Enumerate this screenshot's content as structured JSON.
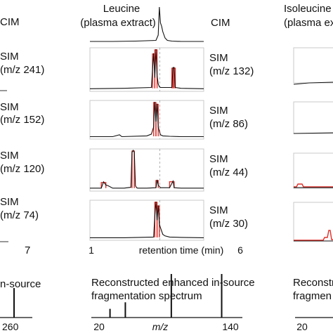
{
  "left_column": {
    "panel_labels": [
      "CIM",
      "SIM",
      "(m/z 241)",
      "SIM",
      "(m/z 152)",
      "SIM",
      "(m/z 120)",
      "SIM",
      "(m/z 74)"
    ],
    "axis_end_label": "7",
    "spectrum_title": "n-source",
    "spectrum_tick": "260"
  },
  "center_column": {
    "title_line1": "Leucine",
    "title_line2": "(plasma extract)",
    "panels": [
      {
        "mode": "CIM",
        "mz": ""
      },
      {
        "mode": "SIM",
        "mz": "(m/z 132)"
      },
      {
        "mode": "SIM",
        "mz": "(m/z 86)"
      },
      {
        "mode": "SIM",
        "mz": "(m/z 44)"
      },
      {
        "mode": "SIM",
        "mz": "(m/z 30)"
      }
    ],
    "x_axis": {
      "min_label": "1",
      "max_label": "6",
      "label": "retention time (min)"
    },
    "spectrum": {
      "title_line1": "Reconstructed enhanced in-source",
      "title_line2": "fragmentation spectrum",
      "x_min_label": "20",
      "x_label": "m/z",
      "x_max_label": "140"
    }
  },
  "right_column": {
    "title_line1": "Isoleucine",
    "title_line2": "(plasma ex",
    "spectrum_title_line1": "Reconstru",
    "spectrum_title_line2": "fragmen",
    "spectrum_tick": "20"
  },
  "colors": {
    "trace": "#111111",
    "highlight": "#e0302a",
    "frame": "#c8c8c8",
    "dashed": "#b0b0b0"
  },
  "chart_data": [
    {
      "type": "line",
      "title": "Leucine (plasma extract)",
      "xlabel": "retention time (min)",
      "xlim": [
        1,
        6
      ],
      "series": [
        {
          "name": "CIM",
          "x": [
            1.0,
            2.0,
            3.0,
            3.9,
            4.0,
            4.05,
            4.1,
            4.15,
            4.2,
            4.3,
            4.4,
            4.6,
            5.0,
            6.0
          ],
          "y": [
            0.02,
            0.02,
            0.03,
            0.05,
            0.2,
            1.0,
            0.55,
            0.45,
            0.3,
            0.12,
            0.05,
            0.03,
            0.02,
            0.02
          ]
        },
        {
          "name": "SIM (m/z 132)",
          "x": [
            1.0,
            2.5,
            3.7,
            3.75,
            3.8,
            3.85,
            3.9,
            3.95,
            4.0,
            4.05,
            4.1,
            4.2,
            4.3,
            4.6,
            4.65,
            4.7,
            4.75,
            5.0,
            6.0
          ],
          "y": [
            0.03,
            0.04,
            0.06,
            0.5,
            0.9,
            0.3,
            1.0,
            0.35,
            0.15,
            0.08,
            0.06,
            0.06,
            0.06,
            0.06,
            0.55,
            0.55,
            0.06,
            0.04,
            0.03
          ]
        },
        {
          "name": "SIM (m/z 86)",
          "x": [
            1.0,
            2.0,
            2.3,
            2.4,
            3.5,
            3.7,
            3.8,
            3.85,
            3.9,
            3.95,
            4.0,
            4.1,
            4.2,
            4.5,
            5.0,
            6.0
          ],
          "y": [
            0.03,
            0.03,
            0.08,
            0.03,
            0.05,
            0.1,
            0.3,
            1.0,
            0.45,
            0.95,
            0.3,
            0.08,
            0.05,
            0.04,
            0.03,
            0.03
          ]
        },
        {
          "name": "SIM (m/z 44)",
          "x": [
            1.0,
            1.5,
            1.6,
            1.7,
            1.8,
            2.0,
            2.5,
            2.8,
            2.85,
            2.9,
            2.95,
            3.0,
            3.05,
            3.1,
            3.5,
            3.9,
            3.95,
            4.0,
            4.1,
            4.5,
            4.65,
            4.7,
            5.0,
            6.0
          ],
          "y": [
            0.04,
            0.04,
            0.2,
            0.12,
            0.1,
            0.04,
            0.04,
            0.06,
            0.95,
            1.0,
            0.95,
            0.1,
            0.05,
            0.04,
            0.04,
            0.05,
            0.25,
            0.12,
            0.05,
            0.05,
            0.22,
            0.05,
            0.04,
            0.04
          ]
        },
        {
          "name": "SIM (m/z 30)",
          "x": [
            1.0,
            2.5,
            3.8,
            3.85,
            3.9,
            3.95,
            4.0,
            4.05,
            4.1,
            4.2,
            4.3,
            4.5,
            5.0,
            6.0
          ],
          "y": [
            0.03,
            0.03,
            0.05,
            0.6,
            1.0,
            0.5,
            0.9,
            0.4,
            0.3,
            0.12,
            0.08,
            0.05,
            0.04,
            0.03
          ]
        }
      ]
    },
    {
      "type": "bar",
      "title": "Reconstructed enhanced in-source fragmentation spectrum",
      "xlabel": "m/z",
      "xlim": [
        20,
        140
      ],
      "x": [
        30,
        44,
        86,
        132
      ],
      "values": [
        0.2,
        0.35,
        1.0,
        1.0
      ]
    }
  ]
}
